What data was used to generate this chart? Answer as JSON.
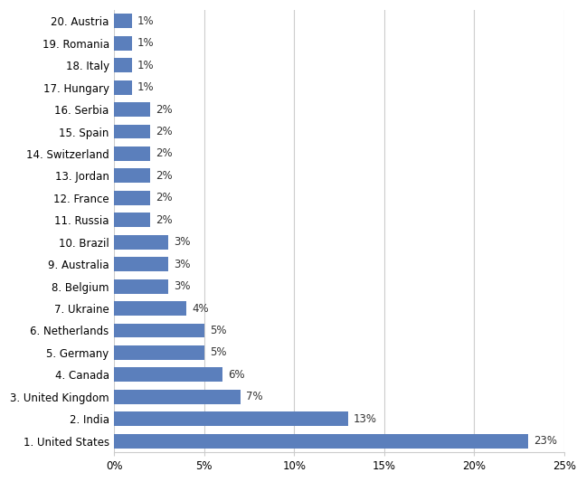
{
  "categories": [
    "1. United States",
    "2. India",
    "3. United Kingdom",
    "4. Canada",
    "5. Germany",
    "6. Netherlands",
    "7. Ukraine",
    "8. Belgium",
    "9. Australia",
    "10. Brazil",
    "11. Russia",
    "12. France",
    "13. Jordan",
    "14. Switzerland",
    "15. Spain",
    "16. Serbia",
    "17. Hungary",
    "18. Italy",
    "19. Romania",
    "20. Austria"
  ],
  "values": [
    23,
    13,
    7,
    6,
    5,
    5,
    4,
    3,
    3,
    3,
    2,
    2,
    2,
    2,
    2,
    2,
    1,
    1,
    1,
    1
  ],
  "bar_color": "#5b7fbc",
  "xlim": [
    0,
    25
  ],
  "xtick_values": [
    0,
    5,
    10,
    15,
    20,
    25
  ],
  "xtick_labels": [
    "0%",
    "5%",
    "10%",
    "15%",
    "20%",
    "25%"
  ],
  "bar_height": 0.65,
  "label_fontsize": 8.5,
  "tick_fontsize": 8.5,
  "background_color": "#ffffff",
  "grid_color": "#cccccc",
  "value_label_color": "#333333",
  "figsize": [
    6.48,
    5.33
  ],
  "dpi": 100
}
